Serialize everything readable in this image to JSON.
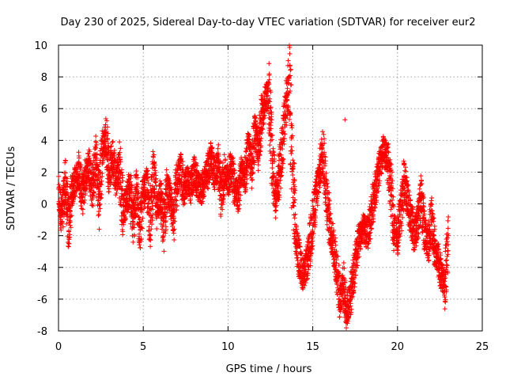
{
  "chart_data": {
    "type": "scatter",
    "title": "Day 230 of 2025, Sidereal Day-to-day VTEC variation (SDTVAR) for receiver eur2",
    "xlabel": "GPS time / hours",
    "ylabel": "SDTVAR / TECUs",
    "xlim": [
      0,
      25
    ],
    "ylim": [
      -8,
      10
    ],
    "xticks": [
      0,
      5,
      10,
      15,
      20,
      25
    ],
    "yticks": [
      -8,
      -6,
      -4,
      -2,
      0,
      2,
      4,
      6,
      8,
      10
    ],
    "grid": true,
    "marker": "plus",
    "color": "#ff0000",
    "series": [
      {
        "name": "SDTVAR",
        "x": [
          0.0,
          0.2,
          0.4,
          0.6,
          0.8,
          1.0,
          1.2,
          1.4,
          1.6,
          1.8,
          2.0,
          2.2,
          2.4,
          2.6,
          2.8,
          3.0,
          3.2,
          3.4,
          3.6,
          3.8,
          4.0,
          4.2,
          4.4,
          4.6,
          4.8,
          5.0,
          5.2,
          5.4,
          5.6,
          5.8,
          6.0,
          6.2,
          6.4,
          6.6,
          6.8,
          7.0,
          7.2,
          7.4,
          7.6,
          7.8,
          8.0,
          8.2,
          8.4,
          8.6,
          8.8,
          9.0,
          9.2,
          9.4,
          9.6,
          9.8,
          10.0,
          10.2,
          10.4,
          10.6,
          10.8,
          11.0,
          11.2,
          11.4,
          11.6,
          11.8,
          12.0,
          12.2,
          12.4,
          12.6,
          12.8,
          13.0,
          13.2,
          13.4,
          13.6,
          13.8,
          14.0,
          14.2,
          14.4,
          14.6,
          14.8,
          15.0,
          15.2,
          15.4,
          15.6,
          15.8,
          16.0,
          16.2,
          16.4,
          16.6,
          16.8,
          17.0,
          17.2,
          17.4,
          17.6,
          17.8,
          18.0,
          18.2,
          18.4,
          18.6,
          18.8,
          19.0,
          19.2,
          19.4,
          19.6,
          19.8,
          20.0,
          20.2,
          20.4,
          20.6,
          20.8,
          21.0,
          21.2,
          21.4,
          21.6,
          21.8,
          22.0,
          22.2,
          22.4,
          22.6,
          22.8,
          23.0
        ],
        "y": [
          0.5,
          -0.8,
          1.2,
          -1.5,
          0.8,
          1.5,
          2.0,
          0.5,
          1.8,
          2.5,
          1.0,
          2.8,
          0.2,
          3.5,
          4.2,
          2.0,
          3.0,
          1.5,
          2.5,
          -0.5,
          0.2,
          1.0,
          -1.2,
          0.8,
          -1.5,
          0.5,
          1.2,
          -1.0,
          1.8,
          -0.2,
          0.5,
          -1.5,
          1.0,
          0.2,
          -0.8,
          1.5,
          2.2,
          0.8,
          1.5,
          1.0,
          2.0,
          1.2,
          0.8,
          1.5,
          2.0,
          3.0,
          1.8,
          2.5,
          0.5,
          2.0,
          1.5,
          2.5,
          1.0,
          0.5,
          2.0,
          1.8,
          3.5,
          2.5,
          4.5,
          3.5,
          5.5,
          6.5,
          7.0,
          3.0,
          0.5,
          1.5,
          3.5,
          6.0,
          8.0,
          2.0,
          -2.0,
          -3.5,
          -4.5,
          -4.0,
          -3.0,
          -1.0,
          0.5,
          2.0,
          3.5,
          0.8,
          -1.5,
          -2.5,
          -4.0,
          -6.0,
          -5.0,
          -6.8,
          -6.0,
          -4.5,
          -3.0,
          -2.0,
          -1.5,
          -2.0,
          -1.0,
          0.5,
          1.5,
          2.5,
          3.3,
          2.8,
          1.0,
          -1.5,
          -2.0,
          -0.5,
          1.5,
          0.2,
          -1.0,
          -2.0,
          -1.0,
          0.5,
          -1.8,
          -2.5,
          -1.0,
          -3.0,
          -3.5,
          -4.5,
          -5.0,
          -2.0
        ],
        "outliers": [
          {
            "x": 16.9,
            "y": 5.3
          }
        ]
      }
    ]
  }
}
